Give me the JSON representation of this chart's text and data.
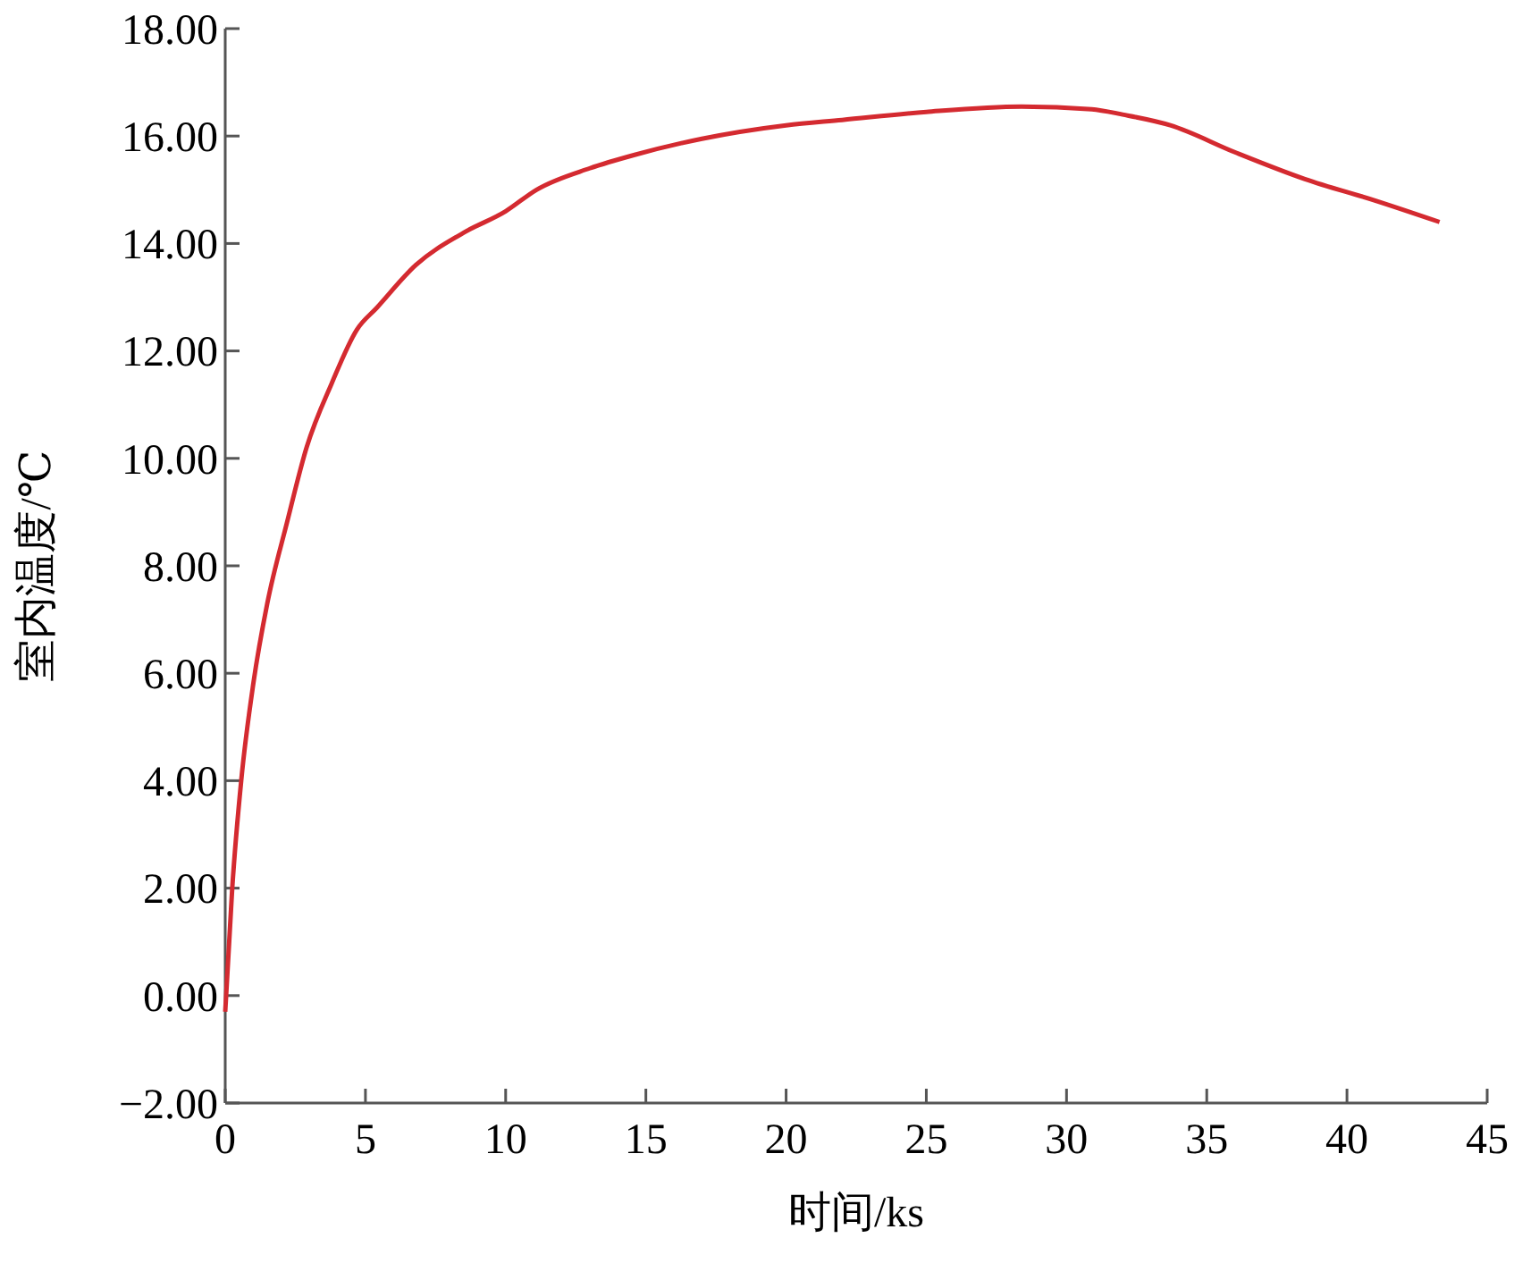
{
  "chart_data": {
    "type": "line",
    "xlabel": "时间/ks",
    "ylabel": "室内温度/℃",
    "xlim": [
      0,
      45
    ],
    "xticks": [
      0,
      5,
      10,
      15,
      20,
      25,
      30,
      35,
      40,
      45
    ],
    "ylim": [
      -2,
      18
    ],
    "yticks": [
      {
        "value": -2,
        "label": "−2.00"
      },
      {
        "value": 0,
        "label": "0.00"
      },
      {
        "value": 2,
        "label": "2.00"
      },
      {
        "value": 4,
        "label": "4.00"
      },
      {
        "value": 6,
        "label": "6.00"
      },
      {
        "value": 8,
        "label": "8.00"
      },
      {
        "value": 10,
        "label": "10.00"
      },
      {
        "value": 12,
        "label": "12.00"
      },
      {
        "value": 14,
        "label": "14.00"
      },
      {
        "value": 16,
        "label": "16.00"
      },
      {
        "value": 18,
        "label": "18.00"
      }
    ],
    "grid": false,
    "marker": "none",
    "line_style": "solid",
    "series": [
      {
        "color": "#d42a30",
        "x": [
          0,
          0.25,
          0.57,
          1,
          1.5,
          2.2,
          2.9,
          3.8,
          4.7,
          5.4,
          6.8,
          8.5,
          10,
          11.1,
          13,
          14.6,
          17,
          20,
          22,
          25,
          28.4,
          30.9,
          32,
          33.7,
          36,
          38.5,
          41,
          43.3
        ],
        "values": [
          -0.3,
          2,
          4,
          5.8,
          7.3,
          8.8,
          10.2,
          11.4,
          12.4,
          12.8,
          13.6,
          14.2,
          14.6,
          15,
          15.4,
          15.65,
          15.95,
          16.2,
          16.3,
          16.45,
          16.55,
          16.5,
          16.4,
          16.2,
          15.7,
          15.2,
          14.8,
          14.4
        ]
      }
    ]
  }
}
